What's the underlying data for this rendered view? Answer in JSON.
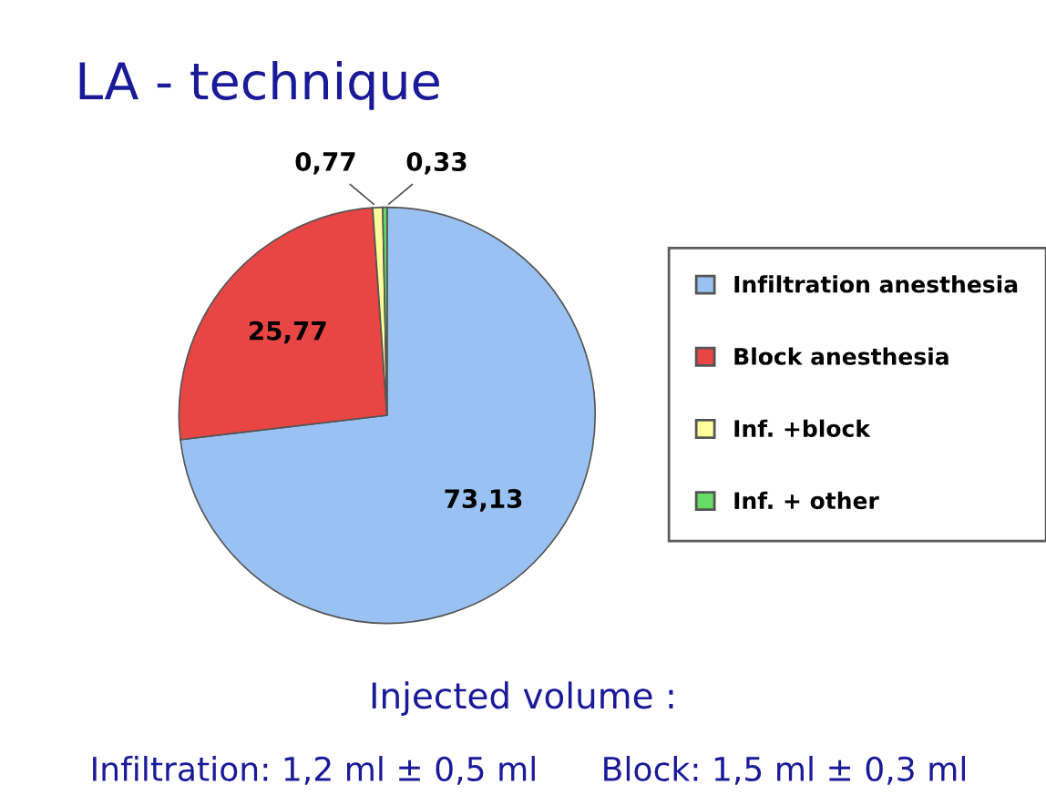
{
  "chart_data": {
    "type": "pie",
    "title": "LA - technique",
    "categories": [
      "Infiltration anesthesia",
      "Block anesthesia",
      "Inf. +block",
      "Inf. + other"
    ],
    "values": [
      73.13,
      25.77,
      0.77,
      0.33
    ],
    "value_labels": [
      "73,13",
      "25,77",
      "0,77",
      "0,33"
    ],
    "colors": [
      "#99c2f2",
      "#e84545",
      "#ffff99",
      "#66dd66"
    ],
    "legend": "right",
    "annotations": [
      "Injected volume :",
      "Infiltration: 1,2 ml ± 0,5 ml",
      "Block: 1,5 ml ± 0,3 ml"
    ]
  }
}
